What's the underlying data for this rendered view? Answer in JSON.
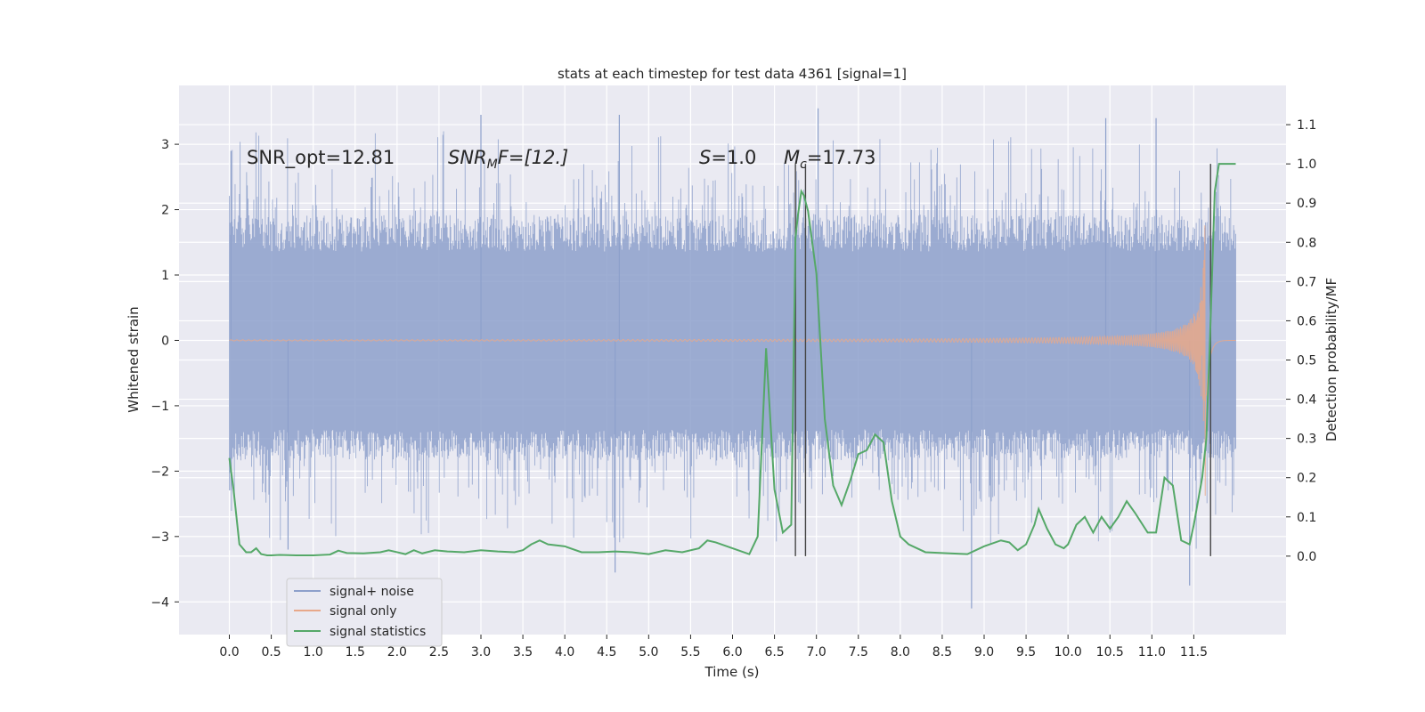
{
  "chart_data": {
    "type": "line",
    "title": "stats at each timestep for test data 4361 [signal=1]",
    "xlabel": "Time (s)",
    "ylabel": "Whitened strain",
    "ylabel_right": "Detection probability/MF",
    "xlim": [
      -0.6,
      12.6
    ],
    "ylim": [
      -4.5,
      3.9
    ],
    "ylim_right": [
      -0.2,
      1.2
    ],
    "x_ticks": [
      "0.0",
      "0.5",
      "1.0",
      "1.5",
      "2.0",
      "2.5",
      "3.0",
      "3.5",
      "4.0",
      "4.5",
      "5.0",
      "5.5",
      "6.0",
      "6.5",
      "7.0",
      "7.5",
      "8.0",
      "8.5",
      "9.0",
      "9.5",
      "10.0",
      "10.5",
      "11.0",
      "11.5"
    ],
    "y_ticks": [
      "3",
      "2",
      "1",
      "0",
      "−1",
      "−2",
      "−3",
      "−4"
    ],
    "y_ticks_right": [
      "1.1",
      "1.0",
      "0.9",
      "0.8",
      "0.7",
      "0.6",
      "0.5",
      "0.4",
      "0.3",
      "0.2",
      "0.1",
      "0.0"
    ],
    "grid": true,
    "legend_position": "lower-left",
    "annotations": {
      "snr_opt": "SNR_opt=12.81",
      "snr_mf_base": "SNR",
      "snr_mf_sub": "M",
      "snr_mf_rest": "F=[12.]",
      "s_base": "S",
      "s_rest": "=1.0",
      "mc_base": "M",
      "mc_sub": "c",
      "mc_rest": "=17.73"
    },
    "vertical_lines": [
      6.75,
      6.87,
      11.7
    ],
    "series": [
      {
        "name": "signal+ noise",
        "color": "#8da0cb",
        "description_type": "noisy strain",
        "envelope": {
          "x_start": 0.0,
          "x_end": 12.0,
          "typical_amplitude": 1.6,
          "max_peak": 3.6,
          "min_peak": -4.1
        }
      },
      {
        "name": "signal only",
        "color": "#e8a88a",
        "description_type": "chirp",
        "chirp": {
          "x_start": 0.0,
          "x_end": 12.0,
          "peak_time": 11.65,
          "peak_amplitude": 2.5
        }
      },
      {
        "name": "signal statistics",
        "color": "#55a868",
        "x": [
          0.0,
          0.05,
          0.12,
          0.2,
          0.26,
          0.32,
          0.38,
          0.45,
          0.5,
          0.6,
          0.8,
          1.0,
          1.2,
          1.3,
          1.4,
          1.6,
          1.8,
          1.9,
          2.0,
          2.1,
          2.2,
          2.3,
          2.45,
          2.6,
          2.8,
          3.0,
          3.2,
          3.4,
          3.5,
          3.6,
          3.7,
          3.8,
          4.0,
          4.2,
          4.4,
          4.6,
          4.8,
          5.0,
          5.2,
          5.4,
          5.6,
          5.7,
          5.8,
          6.0,
          6.2,
          6.3,
          6.4,
          6.5,
          6.6,
          6.7,
          6.75,
          6.78,
          6.82,
          6.85,
          6.9,
          7.0,
          7.1,
          7.2,
          7.3,
          7.35,
          7.4,
          7.5,
          7.6,
          7.7,
          7.8,
          7.9,
          8.0,
          8.1,
          8.3,
          8.5,
          8.8,
          9.0,
          9.2,
          9.3,
          9.4,
          9.5,
          9.6,
          9.65,
          9.75,
          9.85,
          9.95,
          10.0,
          10.1,
          10.2,
          10.3,
          10.4,
          10.5,
          10.6,
          10.7,
          10.8,
          10.95,
          11.05,
          11.15,
          11.25,
          11.35,
          11.45,
          11.5,
          11.6,
          11.65,
          11.7,
          11.75,
          11.8,
          11.85,
          11.95,
          12.0
        ],
        "y": [
          0.25,
          0.17,
          0.03,
          0.01,
          0.01,
          0.02,
          0.005,
          0.002,
          0.002,
          0.003,
          0.002,
          0.002,
          0.004,
          0.014,
          0.008,
          0.007,
          0.01,
          0.015,
          0.01,
          0.005,
          0.015,
          0.007,
          0.015,
          0.012,
          0.01,
          0.015,
          0.012,
          0.01,
          0.015,
          0.03,
          0.04,
          0.03,
          0.025,
          0.01,
          0.01,
          0.012,
          0.01,
          0.005,
          0.015,
          0.01,
          0.02,
          0.04,
          0.035,
          0.02,
          0.005,
          0.05,
          0.53,
          0.17,
          0.06,
          0.08,
          0.81,
          0.87,
          0.93,
          0.92,
          0.88,
          0.72,
          0.35,
          0.18,
          0.13,
          0.16,
          0.19,
          0.26,
          0.27,
          0.31,
          0.29,
          0.14,
          0.05,
          0.03,
          0.01,
          0.008,
          0.005,
          0.025,
          0.04,
          0.035,
          0.015,
          0.03,
          0.08,
          0.12,
          0.07,
          0.03,
          0.02,
          0.03,
          0.08,
          0.1,
          0.06,
          0.1,
          0.07,
          0.1,
          0.14,
          0.11,
          0.06,
          0.06,
          0.2,
          0.18,
          0.04,
          0.03,
          0.08,
          0.2,
          0.3,
          0.6,
          0.93,
          1.0,
          1.0,
          1.0,
          1.0
        ]
      }
    ]
  }
}
